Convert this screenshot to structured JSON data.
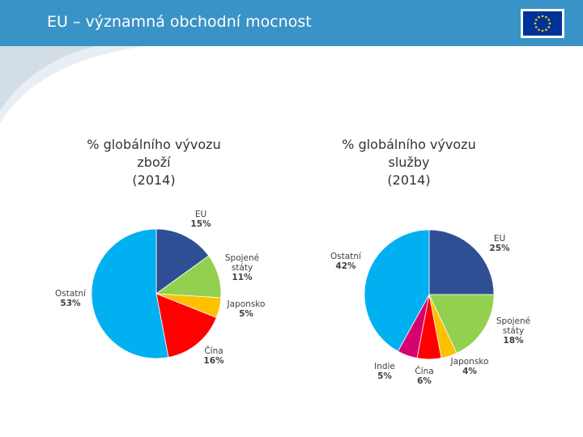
{
  "header": {
    "title": "EU – významná obchodní mocnost"
  },
  "colors": {
    "header": "#3a93c6",
    "eu": "#2e4f94",
    "usa": "#92d050",
    "japan": "#ffc000",
    "china": "#ff0000",
    "india": "#d6006f",
    "other": "#00b0f0"
  },
  "chart_data": [
    {
      "type": "pie",
      "title": [
        "% globálního vývozu",
        "zboží",
        "(2014)"
      ],
      "slices": [
        {
          "label": [
            "EU"
          ],
          "value_label": "15%",
          "value": 15
        },
        {
          "label": [
            "Spojené",
            "státy"
          ],
          "value_label": "11%",
          "value": 11
        },
        {
          "label": [
            "Japonsko"
          ],
          "value_label": "5%",
          "value": 5
        },
        {
          "label": [
            "Čína"
          ],
          "value_label": "16%",
          "value": 16
        },
        {
          "label": [
            "Ostatní"
          ],
          "value_label": "53%",
          "value": 53
        }
      ]
    },
    {
      "type": "pie",
      "title": [
        "% globálního vývozu",
        "služby",
        "(2014)"
      ],
      "slices": [
        {
          "label": [
            "EU"
          ],
          "value_label": "25%",
          "value": 25
        },
        {
          "label": [
            "Spojené",
            "státy"
          ],
          "value_label": "18%",
          "value": 18
        },
        {
          "label": [
            "Japonsko"
          ],
          "value_label": "4%",
          "value": 4
        },
        {
          "label": [
            "Čína"
          ],
          "value_label": "6%",
          "value": 6
        },
        {
          "label": [
            "Indie"
          ],
          "value_label": "5%",
          "value": 5
        },
        {
          "label": [
            "Ostatní"
          ],
          "value_label": "42%",
          "value": 42
        }
      ]
    }
  ]
}
